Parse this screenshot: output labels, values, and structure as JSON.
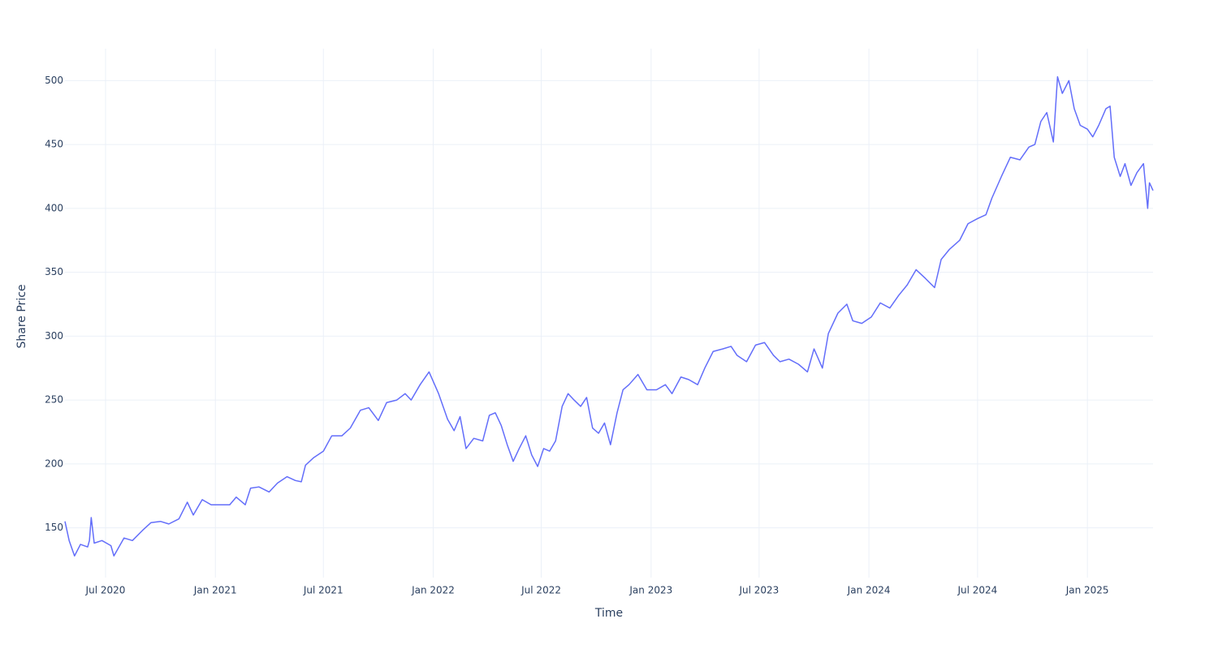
{
  "chart_data": {
    "type": "line",
    "x_title": "Time",
    "y_title": "Share Price",
    "color": "#636efa",
    "grid": true,
    "xlim": [
      "2020-04-24",
      "2025-04-21"
    ],
    "ylim": [
      111,
      525
    ],
    "xticks": [
      {
        "value": "2020-07-01",
        "label": "Jul 2020"
      },
      {
        "value": "2021-01-01",
        "label": "Jan 2021"
      },
      {
        "value": "2021-07-01",
        "label": "Jul 2021"
      },
      {
        "value": "2022-01-01",
        "label": "Jan 2022"
      },
      {
        "value": "2022-07-01",
        "label": "Jul 2022"
      },
      {
        "value": "2023-01-01",
        "label": "Jan 2023"
      },
      {
        "value": "2023-07-01",
        "label": "Jul 2023"
      },
      {
        "value": "2024-01-01",
        "label": "Jan 2024"
      },
      {
        "value": "2024-07-01",
        "label": "Jul 2024"
      },
      {
        "value": "2025-01-01",
        "label": "Jan 2025"
      }
    ],
    "yticks": [
      150,
      200,
      250,
      300,
      350,
      400,
      450,
      500
    ],
    "x": [
      "2020-04-24",
      "2020-05-01",
      "2020-05-10",
      "2020-05-20",
      "2020-06-01",
      "2020-06-04",
      "2020-06-07",
      "2020-06-12",
      "2020-06-25",
      "2020-07-10",
      "2020-07-15",
      "2020-08-01",
      "2020-08-15",
      "2020-09-01",
      "2020-09-15",
      "2020-10-01",
      "2020-10-15",
      "2020-11-01",
      "2020-11-15",
      "2020-11-25",
      "2020-12-10",
      "2020-12-25",
      "2021-01-10",
      "2021-01-25",
      "2021-02-05",
      "2021-02-20",
      "2021-03-01",
      "2021-03-15",
      "2021-04-01",
      "2021-04-15",
      "2021-05-01",
      "2021-05-15",
      "2021-05-25",
      "2021-06-01",
      "2021-06-15",
      "2021-07-01",
      "2021-07-15",
      "2021-08-01",
      "2021-08-15",
      "2021-09-01",
      "2021-09-15",
      "2021-10-01",
      "2021-10-15",
      "2021-11-01",
      "2021-11-15",
      "2021-11-25",
      "2021-12-10",
      "2021-12-25",
      "2022-01-10",
      "2022-01-25",
      "2022-02-05",
      "2022-02-15",
      "2022-02-25",
      "2022-03-10",
      "2022-03-25",
      "2022-04-05",
      "2022-04-15",
      "2022-04-25",
      "2022-05-05",
      "2022-05-15",
      "2022-05-25",
      "2022-06-05",
      "2022-06-15",
      "2022-06-25",
      "2022-07-05",
      "2022-07-15",
      "2022-07-25",
      "2022-08-05",
      "2022-08-15",
      "2022-08-25",
      "2022-09-05",
      "2022-09-15",
      "2022-09-25",
      "2022-10-05",
      "2022-10-15",
      "2022-10-25",
      "2022-11-05",
      "2022-11-15",
      "2022-11-25",
      "2022-12-10",
      "2022-12-25",
      "2023-01-10",
      "2023-01-25",
      "2023-02-05",
      "2023-02-20",
      "2023-03-05",
      "2023-03-20",
      "2023-04-01",
      "2023-04-15",
      "2023-05-01",
      "2023-05-15",
      "2023-05-25",
      "2023-06-10",
      "2023-06-25",
      "2023-07-10",
      "2023-07-25",
      "2023-08-05",
      "2023-08-20",
      "2023-09-05",
      "2023-09-20",
      "2023-10-01",
      "2023-10-15",
      "2023-10-25",
      "2023-11-10",
      "2023-11-25",
      "2023-12-05",
      "2023-12-20",
      "2024-01-05",
      "2024-01-20",
      "2024-02-05",
      "2024-02-20",
      "2024-03-05",
      "2024-03-20",
      "2024-04-05",
      "2024-04-20",
      "2024-05-01",
      "2024-05-15",
      "2024-06-01",
      "2024-06-15",
      "2024-07-01",
      "2024-07-15",
      "2024-07-25",
      "2024-08-10",
      "2024-08-25",
      "2024-09-10",
      "2024-09-25",
      "2024-10-05",
      "2024-10-15",
      "2024-10-25",
      "2024-11-05",
      "2024-11-12",
      "2024-11-20",
      "2024-12-01",
      "2024-12-10",
      "2024-12-20",
      "2025-01-01",
      "2025-01-10",
      "2025-01-20",
      "2025-02-01",
      "2025-02-08",
      "2025-02-15",
      "2025-02-25",
      "2025-03-05",
      "2025-03-15",
      "2025-03-25",
      "2025-04-05",
      "2025-04-12",
      "2025-04-15",
      "2025-04-21"
    ],
    "values": [
      155,
      140,
      128,
      137,
      135,
      140,
      158,
      138,
      140,
      136,
      128,
      142,
      140,
      148,
      154,
      155,
      153,
      157,
      170,
      160,
      172,
      168,
      168,
      168,
      174,
      168,
      181,
      182,
      178,
      185,
      190,
      187,
      186,
      199,
      205,
      210,
      222,
      222,
      228,
      242,
      244,
      234,
      248,
      250,
      255,
      250,
      262,
      272,
      255,
      235,
      226,
      237,
      212,
      220,
      218,
      238,
      240,
      230,
      215,
      202,
      212,
      222,
      207,
      198,
      212,
      210,
      218,
      245,
      255,
      250,
      245,
      252,
      228,
      224,
      232,
      215,
      240,
      258,
      262,
      270,
      258,
      258,
      262,
      255,
      268,
      266,
      262,
      275,
      288,
      290,
      292,
      285,
      280,
      293,
      295,
      285,
      280,
      282,
      278,
      272,
      290,
      275,
      302,
      318,
      325,
      312,
      310,
      315,
      326,
      322,
      332,
      340,
      352,
      345,
      338,
      360,
      368,
      375,
      388,
      392,
      395,
      408,
      425,
      440,
      438,
      448,
      450,
      468,
      475,
      452,
      503,
      490,
      500,
      478,
      465,
      462,
      456,
      465,
      478,
      480,
      440,
      425,
      435,
      418,
      428,
      435,
      400,
      420,
      414
    ]
  }
}
